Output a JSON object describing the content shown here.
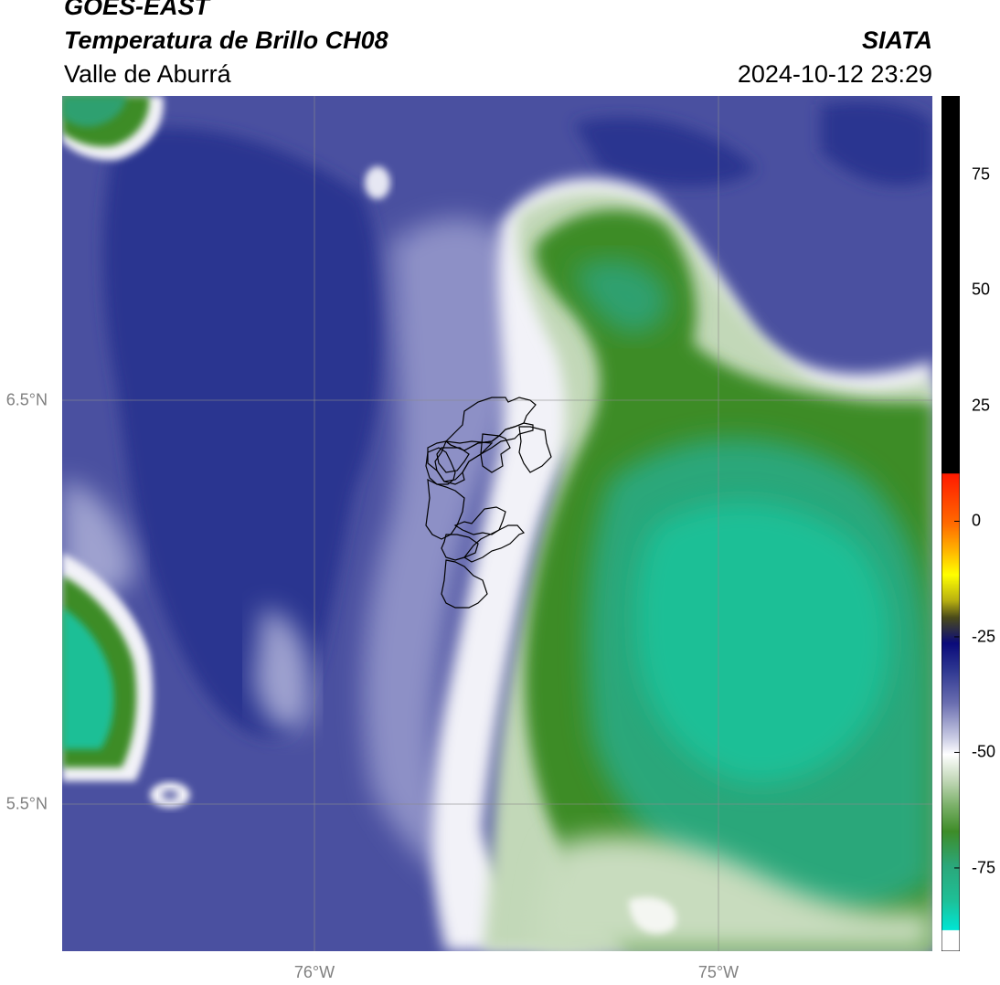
{
  "header": {
    "satellite": "GOES-EAST",
    "product": "Temperatura de Brillo CH08",
    "region": "Valle de Aburrá",
    "organization": "SIATA",
    "timestamp": "2024-10-12 23:29"
  },
  "map": {
    "lat_labels": [
      {
        "value": 6.5,
        "label": "6.5°N"
      },
      {
        "value": 5.5,
        "label": "5.5°N"
      }
    ],
    "lon_labels": [
      {
        "value": -76,
        "label": "76°W"
      },
      {
        "value": -75,
        "label": "75°W"
      }
    ],
    "gridlines": true
  },
  "colorbar": {
    "min": -93,
    "max": 92,
    "ticks": [
      {
        "value": 75,
        "label": "75"
      },
      {
        "value": 50,
        "label": "50"
      },
      {
        "value": 25,
        "label": "25"
      },
      {
        "value": 0,
        "label": "0"
      },
      {
        "value": -25,
        "label": "-25"
      },
      {
        "value": -50,
        "label": "-50"
      },
      {
        "value": -75,
        "label": "-75"
      }
    ],
    "colors": {
      "black": "#000000",
      "red": "#ff1a00",
      "orange": "#ff9500",
      "yellow": "#ffff00",
      "olive": "#4a4a1a",
      "navy": "#0a0a7a",
      "indigo": "#2c3590",
      "lavender": "#c8cae3",
      "white": "#ffffff",
      "sage": "#c2d8b8",
      "green": "#3e8c28",
      "teal": "#1ebf96",
      "cyan": "#00e5d4"
    }
  }
}
